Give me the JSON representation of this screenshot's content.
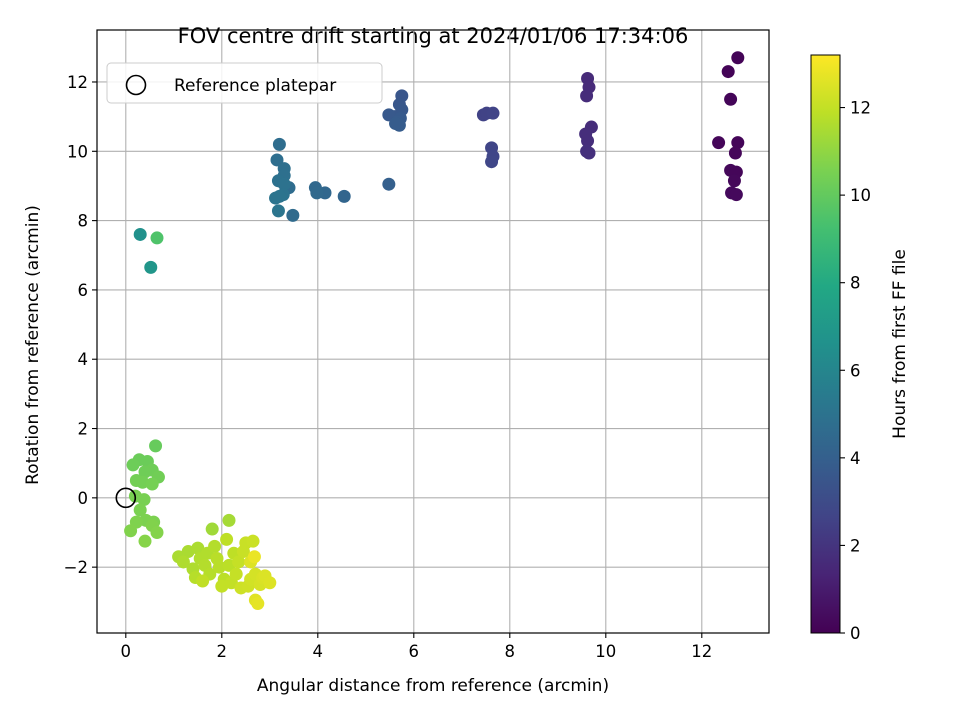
{
  "chart_data": {
    "type": "scatter",
    "title": "FOV centre drift starting at 2024/01/06 17:34:06",
    "xlabel": "Angular distance from reference (arcmin)",
    "ylabel": "Rotation from reference (arcmin)",
    "xlim": [
      -0.6,
      13.4
    ],
    "ylim": [
      -3.9,
      13.5
    ],
    "xticks": [
      0,
      2,
      4,
      6,
      8,
      10,
      12
    ],
    "yticks": [
      -2,
      0,
      2,
      4,
      6,
      8,
      10,
      12
    ],
    "xtick_labels": [
      "0",
      "2",
      "4",
      "6",
      "8",
      "10",
      "12"
    ],
    "ytick_labels": [
      "−2",
      "0",
      "2",
      "4",
      "6",
      "8",
      "10",
      "12"
    ],
    "grid": true,
    "legend": {
      "placement": "upper-left",
      "label": "Reference platepar"
    },
    "reference_point": {
      "x": 0,
      "y": 0
    },
    "colorbar": {
      "label": "Hours from first FF file",
      "range": [
        0,
        13.2
      ],
      "ticks": [
        0,
        2,
        4,
        6,
        8,
        10,
        12
      ],
      "tick_labels": [
        "0",
        "2",
        "4",
        "6",
        "8",
        "10",
        "12"
      ],
      "colormap": "viridis"
    },
    "points": [
      [
        12.75,
        12.7,
        0.1
      ],
      [
        12.55,
        12.3,
        0.1
      ],
      [
        12.6,
        11.5,
        0.15
      ],
      [
        12.35,
        10.25,
        0.2
      ],
      [
        12.75,
        10.25,
        0.15
      ],
      [
        12.7,
        9.95,
        0.2
      ],
      [
        12.6,
        9.45,
        0.25
      ],
      [
        12.72,
        9.4,
        0.2
      ],
      [
        12.68,
        9.15,
        0.25
      ],
      [
        12.62,
        8.8,
        0.3
      ],
      [
        12.72,
        8.75,
        0.3
      ],
      [
        9.62,
        12.1,
        1.6
      ],
      [
        9.65,
        11.85,
        1.6
      ],
      [
        9.6,
        11.6,
        1.65
      ],
      [
        9.7,
        10.7,
        1.7
      ],
      [
        9.58,
        10.5,
        1.75
      ],
      [
        9.62,
        10.3,
        1.75
      ],
      [
        9.6,
        10.0,
        1.8
      ],
      [
        9.65,
        9.95,
        1.8
      ],
      [
        7.45,
        11.05,
        2.6
      ],
      [
        7.52,
        11.1,
        2.6
      ],
      [
        7.65,
        11.1,
        2.65
      ],
      [
        7.62,
        10.1,
        2.7
      ],
      [
        7.65,
        9.85,
        2.75
      ],
      [
        7.62,
        9.7,
        2.8
      ],
      [
        5.75,
        11.6,
        3.5
      ],
      [
        5.7,
        11.35,
        3.55
      ],
      [
        5.75,
        11.2,
        3.6
      ],
      [
        5.6,
        11.0,
        3.6
      ],
      [
        5.48,
        11.05,
        3.65
      ],
      [
        5.72,
        10.95,
        3.7
      ],
      [
        5.65,
        10.85,
        3.75
      ],
      [
        5.7,
        10.75,
        3.8
      ],
      [
        5.62,
        10.8,
        3.8
      ],
      [
        5.48,
        9.05,
        4.0
      ],
      [
        4.55,
        8.7,
        4.3
      ],
      [
        4.15,
        8.8,
        4.4
      ],
      [
        3.95,
        8.95,
        4.45
      ],
      [
        3.98,
        8.8,
        4.5
      ],
      [
        3.48,
        8.15,
        4.6
      ],
      [
        3.4,
        8.95,
        4.65
      ],
      [
        3.2,
        10.2,
        4.7
      ],
      [
        3.15,
        9.75,
        4.75
      ],
      [
        3.3,
        9.5,
        4.8
      ],
      [
        3.3,
        9.3,
        4.85
      ],
      [
        3.18,
        9.15,
        4.9
      ],
      [
        3.3,
        9.05,
        4.95
      ],
      [
        3.28,
        8.75,
        5.0
      ],
      [
        3.12,
        8.65,
        5.05
      ],
      [
        3.2,
        8.7,
        5.05
      ],
      [
        3.18,
        8.28,
        5.1
      ],
      [
        0.3,
        7.6,
        6.6
      ],
      [
        0.52,
        6.65,
        6.9
      ],
      [
        0.65,
        7.5,
        9.5
      ],
      [
        0.62,
        1.5,
        10.1
      ],
      [
        0.28,
        1.1,
        10.2
      ],
      [
        0.45,
        1.05,
        10.2
      ],
      [
        0.15,
        0.95,
        10.25
      ],
      [
        0.55,
        0.8,
        10.3
      ],
      [
        0.4,
        0.75,
        10.3
      ],
      [
        0.68,
        0.6,
        10.35
      ],
      [
        0.22,
        0.5,
        10.4
      ],
      [
        0.35,
        0.45,
        10.4
      ],
      [
        0.55,
        0.4,
        10.45
      ],
      [
        0.2,
        0.05,
        10.5
      ],
      [
        0.38,
        -0.05,
        10.5
      ],
      [
        0.3,
        -0.35,
        10.55
      ],
      [
        0.42,
        -0.65,
        10.6
      ],
      [
        0.58,
        -0.7,
        10.6
      ],
      [
        0.22,
        -0.7,
        10.65
      ],
      [
        0.55,
        -0.8,
        10.7
      ],
      [
        0.1,
        -0.95,
        10.7
      ],
      [
        0.65,
        -1.0,
        10.75
      ],
      [
        0.4,
        -1.25,
        10.8
      ],
      [
        1.8,
        -0.9,
        11.3
      ],
      [
        2.15,
        -0.65,
        11.4
      ],
      [
        1.1,
        -1.7,
        11.5
      ],
      [
        1.3,
        -1.55,
        11.5
      ],
      [
        1.5,
        -1.45,
        11.55
      ],
      [
        1.2,
        -1.85,
        11.6
      ],
      [
        1.4,
        -2.05,
        11.6
      ],
      [
        1.55,
        -1.75,
        11.65
      ],
      [
        1.7,
        -1.6,
        11.65
      ],
      [
        1.85,
        -1.4,
        11.7
      ],
      [
        1.65,
        -1.95,
        11.7
      ],
      [
        1.45,
        -2.3,
        11.75
      ],
      [
        1.75,
        -2.2,
        11.75
      ],
      [
        1.95,
        -2.0,
        11.8
      ],
      [
        1.9,
        -1.75,
        11.8
      ],
      [
        2.05,
        -2.35,
        11.85
      ],
      [
        2.15,
        -1.95,
        11.85
      ],
      [
        2.25,
        -1.6,
        11.9
      ],
      [
        2.1,
        -1.2,
        11.9
      ],
      [
        1.6,
        -2.4,
        11.95
      ],
      [
        2.0,
        -2.55,
        12.0
      ],
      [
        2.2,
        -2.45,
        12.0
      ],
      [
        2.3,
        -2.2,
        12.05
      ],
      [
        2.35,
        -1.85,
        12.05
      ],
      [
        2.45,
        -1.55,
        12.1
      ],
      [
        2.5,
        -1.3,
        12.1
      ],
      [
        2.65,
        -1.25,
        12.15
      ],
      [
        2.4,
        -2.6,
        12.2
      ],
      [
        2.55,
        -2.55,
        12.25
      ],
      [
        2.6,
        -2.35,
        12.3
      ],
      [
        2.7,
        -2.2,
        12.35
      ],
      [
        2.8,
        -2.5,
        12.4
      ],
      [
        2.85,
        -2.3,
        12.45
      ],
      [
        2.9,
        -2.25,
        12.5
      ],
      [
        3.0,
        -2.45,
        12.55
      ],
      [
        2.6,
        -1.85,
        12.55
      ],
      [
        2.7,
        -2.95,
        12.6
      ],
      [
        2.75,
        -3.05,
        12.7
      ],
      [
        2.68,
        -1.7,
        12.8
      ]
    ]
  }
}
